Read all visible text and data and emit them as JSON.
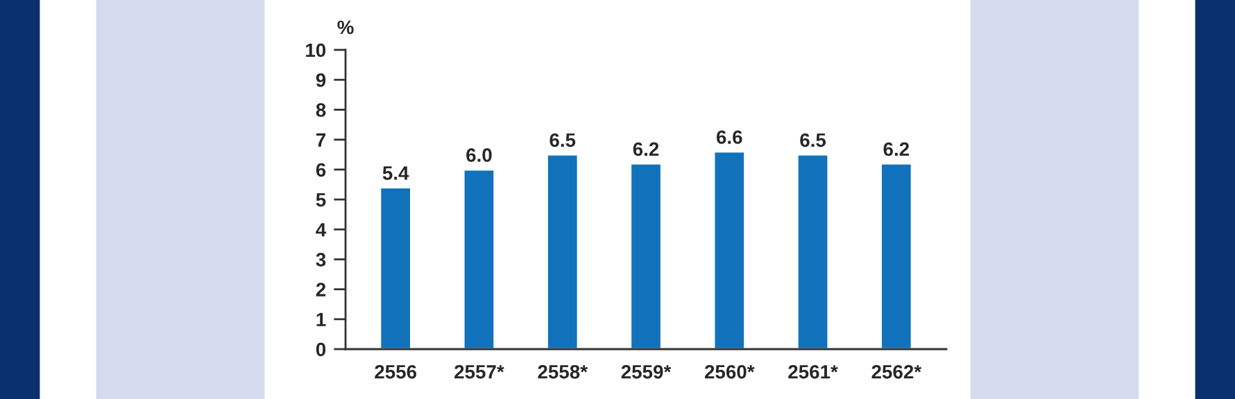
{
  "chart_data": {
    "type": "bar",
    "ylabel": "%",
    "categories": [
      "2556",
      "2557*",
      "2558*",
      "2559*",
      "2560*",
      "2561*",
      "2562*"
    ],
    "values": [
      5.4,
      6.0,
      6.5,
      6.2,
      6.6,
      6.5,
      6.2
    ],
    "color": "#1172bb",
    "ylim": [
      0,
      10
    ],
    "yticks": [
      0,
      1,
      2,
      3,
      4,
      5,
      6,
      7,
      8,
      9,
      10
    ],
    "value_labels": [
      "5.4",
      "6.0",
      "6.5",
      "6.2",
      "6.6",
      "6.5",
      "6.2"
    ],
    "grid": false
  }
}
